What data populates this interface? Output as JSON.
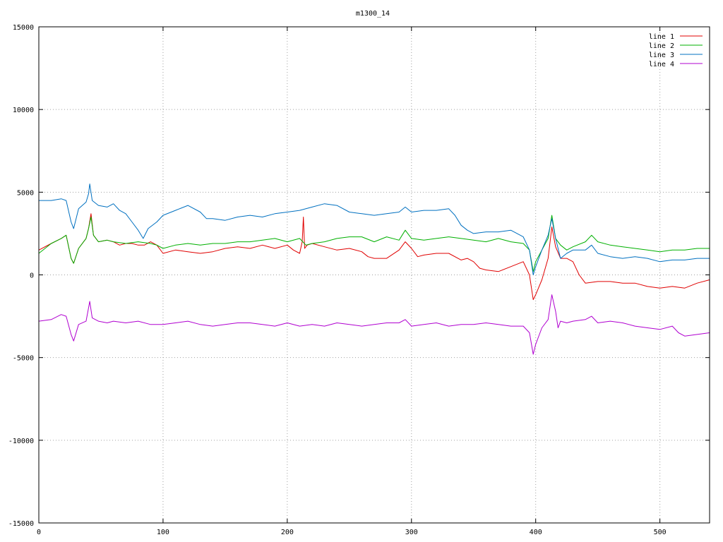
{
  "chart_data": {
    "type": "line",
    "title": "m1300_14",
    "xlabel": "",
    "ylabel": "",
    "xlim": [
      0,
      540
    ],
    "ylim": [
      -15000,
      15000
    ],
    "x_ticks": [
      0,
      100,
      200,
      300,
      400,
      500
    ],
    "y_ticks": [
      -15000,
      -10000,
      -5000,
      0,
      5000,
      10000,
      15000
    ],
    "x_tick_labels": [
      "0",
      "100",
      "200",
      "300",
      "400",
      "500"
    ],
    "y_tick_labels": [
      "-15000",
      "-10000",
      "-5000",
      "0",
      "5000",
      "10000",
      "15000"
    ],
    "grid": true,
    "legend_position": "top-right",
    "series": [
      {
        "name": "line 1",
        "color": "#e00000",
        "points": [
          [
            0,
            1500
          ],
          [
            10,
            1900
          ],
          [
            18,
            2200
          ],
          [
            22,
            2400
          ],
          [
            26,
            1000
          ],
          [
            28,
            700
          ],
          [
            32,
            1600
          ],
          [
            38,
            2200
          ],
          [
            40,
            2800
          ],
          [
            42,
            3700
          ],
          [
            44,
            2400
          ],
          [
            48,
            2000
          ],
          [
            55,
            2100
          ],
          [
            60,
            2000
          ],
          [
            65,
            1800
          ],
          [
            70,
            1900
          ],
          [
            75,
            1900
          ],
          [
            80,
            1800
          ],
          [
            85,
            1800
          ],
          [
            90,
            2000
          ],
          [
            95,
            1800
          ],
          [
            100,
            1300
          ],
          [
            110,
            1500
          ],
          [
            120,
            1400
          ],
          [
            130,
            1300
          ],
          [
            140,
            1400
          ],
          [
            150,
            1600
          ],
          [
            160,
            1700
          ],
          [
            170,
            1600
          ],
          [
            180,
            1800
          ],
          [
            190,
            1600
          ],
          [
            200,
            1800
          ],
          [
            205,
            1500
          ],
          [
            210,
            1300
          ],
          [
            212,
            2000
          ],
          [
            213,
            3500
          ],
          [
            214,
            1600
          ],
          [
            216,
            1800
          ],
          [
            220,
            1900
          ],
          [
            230,
            1700
          ],
          [
            240,
            1500
          ],
          [
            250,
            1600
          ],
          [
            260,
            1400
          ],
          [
            265,
            1100
          ],
          [
            270,
            1000
          ],
          [
            280,
            1000
          ],
          [
            290,
            1500
          ],
          [
            295,
            2000
          ],
          [
            300,
            1600
          ],
          [
            305,
            1100
          ],
          [
            310,
            1200
          ],
          [
            320,
            1300
          ],
          [
            330,
            1300
          ],
          [
            340,
            900
          ],
          [
            345,
            1000
          ],
          [
            350,
            800
          ],
          [
            355,
            400
          ],
          [
            360,
            300
          ],
          [
            370,
            200
          ],
          [
            380,
            500
          ],
          [
            390,
            800
          ],
          [
            395,
            0
          ],
          [
            398,
            -1500
          ],
          [
            400,
            -1200
          ],
          [
            405,
            -300
          ],
          [
            410,
            1000
          ],
          [
            413,
            2900
          ],
          [
            416,
            1700
          ],
          [
            420,
            1000
          ],
          [
            425,
            1000
          ],
          [
            430,
            800
          ],
          [
            435,
            0
          ],
          [
            440,
            -500
          ],
          [
            450,
            -400
          ],
          [
            460,
            -400
          ],
          [
            470,
            -500
          ],
          [
            480,
            -500
          ],
          [
            490,
            -700
          ],
          [
            500,
            -800
          ],
          [
            510,
            -700
          ],
          [
            520,
            -800
          ],
          [
            530,
            -500
          ],
          [
            540,
            -300
          ]
        ]
      },
      {
        "name": "line 2",
        "color": "#00b000",
        "points": [
          [
            0,
            1300
          ],
          [
            10,
            1900
          ],
          [
            18,
            2200
          ],
          [
            22,
            2400
          ],
          [
            26,
            1000
          ],
          [
            28,
            700
          ],
          [
            32,
            1600
          ],
          [
            38,
            2200
          ],
          [
            40,
            2800
          ],
          [
            42,
            3500
          ],
          [
            44,
            2400
          ],
          [
            48,
            2000
          ],
          [
            55,
            2100
          ],
          [
            60,
            2000
          ],
          [
            70,
            1900
          ],
          [
            80,
            2000
          ],
          [
            90,
            1900
          ],
          [
            95,
            1800
          ],
          [
            100,
            1600
          ],
          [
            110,
            1800
          ],
          [
            120,
            1900
          ],
          [
            130,
            1800
          ],
          [
            140,
            1900
          ],
          [
            150,
            1900
          ],
          [
            160,
            2000
          ],
          [
            170,
            2000
          ],
          [
            180,
            2100
          ],
          [
            190,
            2200
          ],
          [
            200,
            2000
          ],
          [
            210,
            2200
          ],
          [
            215,
            1800
          ],
          [
            220,
            1900
          ],
          [
            230,
            2000
          ],
          [
            240,
            2200
          ],
          [
            250,
            2300
          ],
          [
            260,
            2300
          ],
          [
            270,
            2000
          ],
          [
            280,
            2300
          ],
          [
            290,
            2100
          ],
          [
            295,
            2700
          ],
          [
            300,
            2200
          ],
          [
            310,
            2100
          ],
          [
            320,
            2200
          ],
          [
            330,
            2300
          ],
          [
            340,
            2200
          ],
          [
            350,
            2100
          ],
          [
            360,
            2000
          ],
          [
            370,
            2200
          ],
          [
            380,
            2000
          ],
          [
            390,
            1900
          ],
          [
            395,
            1500
          ],
          [
            398,
            200
          ],
          [
            400,
            800
          ],
          [
            405,
            1500
          ],
          [
            410,
            2200
          ],
          [
            413,
            3600
          ],
          [
            416,
            2200
          ],
          [
            420,
            1800
          ],
          [
            425,
            1500
          ],
          [
            430,
            1700
          ],
          [
            440,
            2000
          ],
          [
            445,
            2400
          ],
          [
            450,
            2000
          ],
          [
            460,
            1800
          ],
          [
            470,
            1700
          ],
          [
            480,
            1600
          ],
          [
            490,
            1500
          ],
          [
            500,
            1400
          ],
          [
            510,
            1500
          ],
          [
            520,
            1500
          ],
          [
            530,
            1600
          ],
          [
            540,
            1600
          ]
        ]
      },
      {
        "name": "line 3",
        "color": "#0070c0",
        "points": [
          [
            0,
            4500
          ],
          [
            10,
            4500
          ],
          [
            18,
            4600
          ],
          [
            22,
            4500
          ],
          [
            26,
            3200
          ],
          [
            28,
            2800
          ],
          [
            32,
            4000
          ],
          [
            38,
            4400
          ],
          [
            40,
            4900
          ],
          [
            41,
            5500
          ],
          [
            43,
            4500
          ],
          [
            48,
            4200
          ],
          [
            55,
            4100
          ],
          [
            60,
            4300
          ],
          [
            65,
            3900
          ],
          [
            70,
            3700
          ],
          [
            75,
            3200
          ],
          [
            80,
            2700
          ],
          [
            84,
            2200
          ],
          [
            88,
            2800
          ],
          [
            95,
            3200
          ],
          [
            100,
            3600
          ],
          [
            110,
            3900
          ],
          [
            120,
            4200
          ],
          [
            130,
            3800
          ],
          [
            135,
            3400
          ],
          [
            140,
            3400
          ],
          [
            150,
            3300
          ],
          [
            160,
            3500
          ],
          [
            170,
            3600
          ],
          [
            180,
            3500
          ],
          [
            190,
            3700
          ],
          [
            200,
            3800
          ],
          [
            210,
            3900
          ],
          [
            220,
            4100
          ],
          [
            230,
            4300
          ],
          [
            240,
            4200
          ],
          [
            250,
            3800
          ],
          [
            260,
            3700
          ],
          [
            270,
            3600
          ],
          [
            280,
            3700
          ],
          [
            290,
            3800
          ],
          [
            295,
            4100
          ],
          [
            300,
            3800
          ],
          [
            310,
            3900
          ],
          [
            320,
            3900
          ],
          [
            330,
            4000
          ],
          [
            335,
            3600
          ],
          [
            340,
            3000
          ],
          [
            345,
            2700
          ],
          [
            350,
            2500
          ],
          [
            360,
            2600
          ],
          [
            370,
            2600
          ],
          [
            380,
            2700
          ],
          [
            390,
            2300
          ],
          [
            395,
            1500
          ],
          [
            398,
            0
          ],
          [
            400,
            500
          ],
          [
            405,
            1500
          ],
          [
            410,
            2400
          ],
          [
            413,
            3400
          ],
          [
            416,
            2200
          ],
          [
            420,
            1000
          ],
          [
            425,
            1300
          ],
          [
            430,
            1500
          ],
          [
            440,
            1500
          ],
          [
            445,
            1800
          ],
          [
            450,
            1300
          ],
          [
            460,
            1100
          ],
          [
            470,
            1000
          ],
          [
            480,
            1100
          ],
          [
            490,
            1000
          ],
          [
            500,
            800
          ],
          [
            510,
            900
          ],
          [
            520,
            900
          ],
          [
            530,
            1000
          ],
          [
            540,
            1000
          ]
        ]
      },
      {
        "name": "line 4",
        "color": "#b000d0",
        "points": [
          [
            0,
            -2800
          ],
          [
            10,
            -2700
          ],
          [
            18,
            -2400
          ],
          [
            22,
            -2500
          ],
          [
            26,
            -3600
          ],
          [
            28,
            -4000
          ],
          [
            32,
            -3000
          ],
          [
            38,
            -2800
          ],
          [
            40,
            -2000
          ],
          [
            41,
            -1600
          ],
          [
            43,
            -2600
          ],
          [
            48,
            -2800
          ],
          [
            55,
            -2900
          ],
          [
            60,
            -2800
          ],
          [
            70,
            -2900
          ],
          [
            80,
            -2800
          ],
          [
            90,
            -3000
          ],
          [
            100,
            -3000
          ],
          [
            110,
            -2900
          ],
          [
            120,
            -2800
          ],
          [
            130,
            -3000
          ],
          [
            140,
            -3100
          ],
          [
            150,
            -3000
          ],
          [
            160,
            -2900
          ],
          [
            170,
            -2900
          ],
          [
            180,
            -3000
          ],
          [
            190,
            -3100
          ],
          [
            200,
            -2900
          ],
          [
            210,
            -3100
          ],
          [
            220,
            -3000
          ],
          [
            230,
            -3100
          ],
          [
            240,
            -2900
          ],
          [
            250,
            -3000
          ],
          [
            260,
            -3100
          ],
          [
            270,
            -3000
          ],
          [
            280,
            -2900
          ],
          [
            290,
            -2900
          ],
          [
            295,
            -2700
          ],
          [
            300,
            -3100
          ],
          [
            310,
            -3000
          ],
          [
            320,
            -2900
          ],
          [
            330,
            -3100
          ],
          [
            340,
            -3000
          ],
          [
            350,
            -3000
          ],
          [
            360,
            -2900
          ],
          [
            370,
            -3000
          ],
          [
            380,
            -3100
          ],
          [
            390,
            -3100
          ],
          [
            395,
            -3500
          ],
          [
            398,
            -4800
          ],
          [
            400,
            -4200
          ],
          [
            405,
            -3200
          ],
          [
            410,
            -2700
          ],
          [
            413,
            -1200
          ],
          [
            416,
            -2200
          ],
          [
            418,
            -3200
          ],
          [
            420,
            -2800
          ],
          [
            425,
            -2900
          ],
          [
            430,
            -2800
          ],
          [
            440,
            -2700
          ],
          [
            445,
            -2500
          ],
          [
            450,
            -2900
          ],
          [
            460,
            -2800
          ],
          [
            470,
            -2900
          ],
          [
            480,
            -3100
          ],
          [
            490,
            -3200
          ],
          [
            500,
            -3300
          ],
          [
            510,
            -3100
          ],
          [
            515,
            -3500
          ],
          [
            520,
            -3700
          ],
          [
            530,
            -3600
          ],
          [
            540,
            -3500
          ]
        ]
      }
    ]
  }
}
